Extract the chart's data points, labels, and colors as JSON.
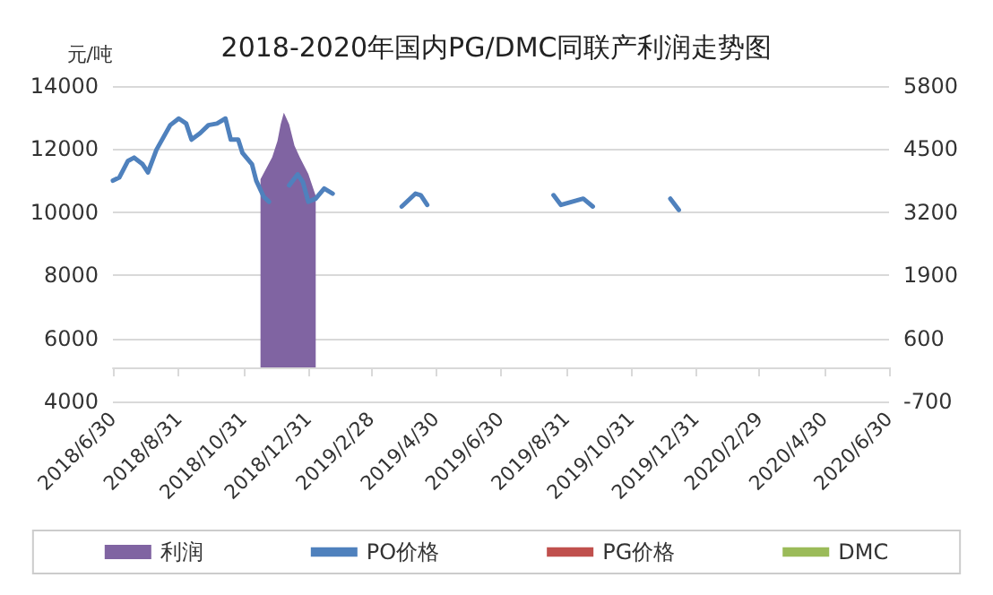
{
  "chart_data": {
    "type": "line",
    "title": "2018-2020年国内PG/DMC同联产利润走势图",
    "ylabel": "元/吨",
    "xlim": [
      "2018-06-30",
      "2020-06-30"
    ],
    "xticks": [
      {
        "value": "2018-06-30",
        "label": "2018/6/30"
      },
      {
        "value": "2018-08-31",
        "label": "2018/8/31"
      },
      {
        "value": "2018-10-31",
        "label": "2018/10/31"
      },
      {
        "value": "2018-12-31",
        "label": "2018/12/31"
      },
      {
        "value": "2019-02-28",
        "label": "2019/2/28"
      },
      {
        "value": "2019-04-30",
        "label": "2019/4/30"
      },
      {
        "value": "2019-06-30",
        "label": "2019/6/30"
      },
      {
        "value": "2019-08-31",
        "label": "2019/8/31"
      },
      {
        "value": "2019-10-31",
        "label": "2019/10/31"
      },
      {
        "value": "2019-12-31",
        "label": "2019/12/31"
      },
      {
        "value": "2020-02-29",
        "label": "2020/2/29"
      },
      {
        "value": "2020-04-30",
        "label": "2020/4/30"
      },
      {
        "value": "2020-06-30",
        "label": "2020/6/30"
      }
    ],
    "ylim": [
      4000,
      14000
    ],
    "yticks": [
      4000,
      6000,
      8000,
      10000,
      12000,
      14000
    ],
    "y2lim": [
      -700,
      5800
    ],
    "y2ticks": [
      -700,
      600,
      1900,
      3200,
      4500,
      5800
    ],
    "grid": "y",
    "legend": "bottom",
    "marker": "none",
    "line_style": "solid",
    "series": [
      {
        "name": "利润",
        "type": "area",
        "axis": "y2",
        "color": "#8064a2",
        "x": [
          "2018-11-16",
          "2018-11-27",
          "2018-12-02",
          "2018-12-05",
          "2018-12-08",
          "2018-12-13",
          "2018-12-18",
          "2018-12-23",
          "2018-12-31",
          "2019-01-07"
        ],
        "values": [
          3880,
          4330,
          4670,
          5010,
          5250,
          5010,
          4570,
          4330,
          3990,
          3540
        ]
      },
      {
        "name": "PO价格",
        "color": "#4f81bd",
        "x": [
          "2018-06-30",
          "2018-07-06",
          "2018-07-14",
          "2018-07-20",
          "2018-07-28",
          "2018-08-02",
          "2018-08-10",
          "2018-08-23",
          "2018-08-31",
          "2018-09-07",
          "2018-09-12",
          "2018-09-20",
          "2018-09-28",
          "2018-10-06",
          "2018-10-14",
          "2018-10-19",
          "2018-10-26",
          "2018-10-30",
          "2018-11-08",
          "2018-11-12",
          "2018-11-19",
          "2018-11-24",
          "2018-12-01",
          "2018-12-13",
          "2018-12-21",
          "2018-12-26",
          "2018-12-31",
          "2019-01-07",
          "2019-01-15",
          "2019-01-23",
          "2019-02-01",
          "2019-03-29",
          "2019-04-11",
          "2019-04-16",
          "2019-04-22",
          "2019-07-17",
          "2019-08-19",
          "2019-08-26",
          "2019-09-16",
          "2019-09-25",
          "2019-10-22",
          "2019-12-07",
          "2019-12-15"
        ],
        "values": [
          11000,
          11100,
          11620,
          11730,
          11520,
          11260,
          11980,
          12760,
          12970,
          12810,
          12300,
          12500,
          12760,
          12810,
          12970,
          12300,
          12300,
          11880,
          11520,
          11000,
          10490,
          10330,
          null,
          10850,
          11200,
          10950,
          10330,
          10430,
          10750,
          10590,
          null,
          10180,
          10590,
          10540,
          10230,
          null,
          10540,
          10230,
          10430,
          10180,
          null,
          10430,
          10070
        ]
      },
      {
        "name": "PG价格",
        "color": "#c0504d"
      },
      {
        "name": "DMC",
        "color": "#9bbb59"
      }
    ]
  }
}
